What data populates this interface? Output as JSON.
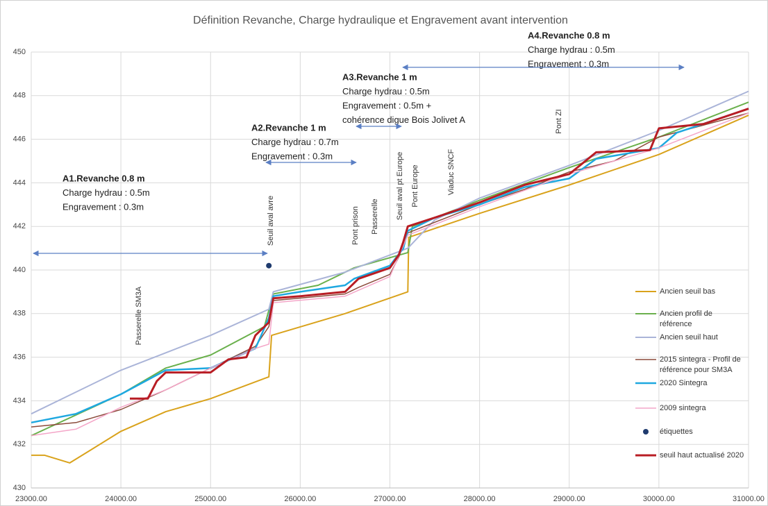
{
  "chart_data": {
    "type": "line",
    "title": "Définition Revanche, Charge hydraulique et Engravement  avant intervention",
    "xlim": [
      23000,
      31000
    ],
    "xticks": [
      {
        "value": 23000,
        "label": "23000.00"
      },
      {
        "value": 24000,
        "label": "24000.00"
      },
      {
        "value": 25000,
        "label": "25000.00"
      },
      {
        "value": 26000,
        "label": "26000.00"
      },
      {
        "value": 27000,
        "label": "27000.00"
      },
      {
        "value": 28000,
        "label": "28000.00"
      },
      {
        "value": 29000,
        "label": "29000.00"
      },
      {
        "value": 30000,
        "label": "30000.00"
      },
      {
        "value": 31000,
        "label": "31000.00"
      }
    ],
    "ylim": [
      430,
      450
    ],
    "yticks": [
      430,
      432,
      434,
      436,
      438,
      440,
      442,
      444,
      446,
      448,
      450
    ],
    "grid": true,
    "legend": "right",
    "series": [
      {
        "name": "Ancien seuil bas",
        "color": "#d9a21b",
        "line_width": 2,
        "x": [
          23000,
          23150,
          23430,
          24000,
          24500,
          25000,
          25650,
          25680,
          26500,
          27200,
          27210,
          28000,
          29000,
          30000,
          31000
        ],
        "values": [
          431.5,
          431.5,
          431.15,
          432.6,
          433.5,
          434.1,
          435.1,
          437.0,
          438.0,
          439.0,
          441.5,
          442.6,
          443.9,
          445.3,
          447.1
        ]
      },
      {
        "name": "Ancien profil de référence",
        "color": "#6ab04c",
        "line_width": 2,
        "x": [
          23000,
          24000,
          24500,
          25000,
          25600,
          25700,
          26200,
          26600,
          27200,
          27250,
          28000,
          29000,
          30000,
          31000
        ],
        "values": [
          432.4,
          434.3,
          435.5,
          436.1,
          437.4,
          438.9,
          439.3,
          440.1,
          440.8,
          442.0,
          443.2,
          444.7,
          446.1,
          447.7
        ]
      },
      {
        "name": "Ancien seuil haut",
        "color": "#aab4d8",
        "line_width": 2,
        "x": [
          23000,
          24000,
          25000,
          25650,
          25700,
          26500,
          27200,
          27500,
          28000,
          29000,
          30000,
          31000
        ],
        "values": [
          433.4,
          435.4,
          437.0,
          438.2,
          439.0,
          439.9,
          441.0,
          442.3,
          443.3,
          444.8,
          446.4,
          448.2
        ]
      },
      {
        "name": "2015 sintegra - Profil de référence pour SM3A",
        "color": "#8b4a3a",
        "line_width": 1.5,
        "x": [
          23000,
          23500,
          24000,
          24500,
          25000,
          25500,
          25650,
          25700,
          26500,
          26650,
          27000,
          27100,
          27200,
          28000,
          28500,
          29000,
          29500,
          30000,
          31000
        ],
        "values": [
          432.8,
          433.0,
          433.6,
          434.5,
          435.5,
          436.5,
          437.4,
          438.6,
          438.9,
          439.2,
          439.8,
          440.6,
          441.7,
          443.0,
          443.7,
          444.5,
          445.0,
          446.1,
          447.2
        ]
      },
      {
        "name": "2020 Sintegra",
        "color": "#1ea8e0",
        "line_width": 2.5,
        "x": [
          23000,
          23500,
          24000,
          24500,
          25000,
          25500,
          25650,
          25700,
          26000,
          26500,
          26600,
          27000,
          27150,
          27200,
          27500,
          28000,
          28500,
          29000,
          29300,
          30000,
          30200,
          31000
        ],
        "values": [
          433.0,
          433.4,
          434.3,
          435.4,
          435.5,
          436.4,
          437.8,
          438.8,
          439.0,
          439.3,
          439.6,
          440.2,
          441.0,
          441.8,
          442.4,
          443.0,
          443.8,
          444.2,
          445.1,
          445.6,
          446.3,
          447.4
        ]
      },
      {
        "name": "2009 sintegra",
        "color": "#f4a6c8",
        "line_width": 1.5,
        "x": [
          23000,
          23500,
          24000,
          24500,
          25000,
          25500,
          25650,
          25700,
          26500,
          27000,
          27200,
          28000,
          29000,
          30000,
          31000
        ],
        "values": [
          432.4,
          432.7,
          433.7,
          434.5,
          435.5,
          436.4,
          436.6,
          438.5,
          438.8,
          439.7,
          441.6,
          442.9,
          444.4,
          445.6,
          447.2
        ]
      },
      {
        "name": "étiquettes",
        "color": "#1f3b6e",
        "marker": true,
        "x": [
          25650
        ],
        "values": [
          440.2
        ]
      },
      {
        "name": "seuil haut actualisé 2020",
        "color": "#b81d24",
        "line_width": 3,
        "x": [
          24100,
          24300,
          24400,
          24500,
          25000,
          25200,
          25400,
          25500,
          25650,
          25700,
          26000,
          26500,
          26650,
          27000,
          27100,
          27150,
          27200,
          27500,
          28000,
          28500,
          29000,
          29300,
          29900,
          30000,
          30500,
          31000
        ],
        "values": [
          434.1,
          434.1,
          434.9,
          435.3,
          435.3,
          435.9,
          436.0,
          437.0,
          437.6,
          438.7,
          438.8,
          439.0,
          439.6,
          440.1,
          440.7,
          441.3,
          442.0,
          442.4,
          443.1,
          443.9,
          444.4,
          445.4,
          445.5,
          446.5,
          446.7,
          447.4
        ]
      }
    ],
    "annotations": [
      {
        "lines": [
          "A1.Revanche 0.8 m",
          "Charge hydrau : 0.5m",
          "Engravement : 0.3m"
        ]
      },
      {
        "lines": [
          "A2.Revanche 1 m",
          "Charge hydrau : 0.7m",
          "Engravement : 0.3m"
        ]
      },
      {
        "lines": [
          "A3.Revanche 1 m",
          "Charge hydrau : 0.5m",
          "Engravement : 0.5m +",
          "cohérence digue Bois Jolivet A"
        ]
      },
      {
        "lines": [
          "A4.Revanche 0.8 m",
          "Charge hydrau : 0.5m",
          "Engravement : 0.3m"
        ]
      }
    ],
    "structures": [
      "Passerelle SM3A",
      "Seuil aval avre",
      "Pont prison",
      "Passerelle",
      "Seuil aval pt Europe",
      "Pont Europe",
      "Viaduc SNCF",
      "Pont ZI"
    ]
  }
}
